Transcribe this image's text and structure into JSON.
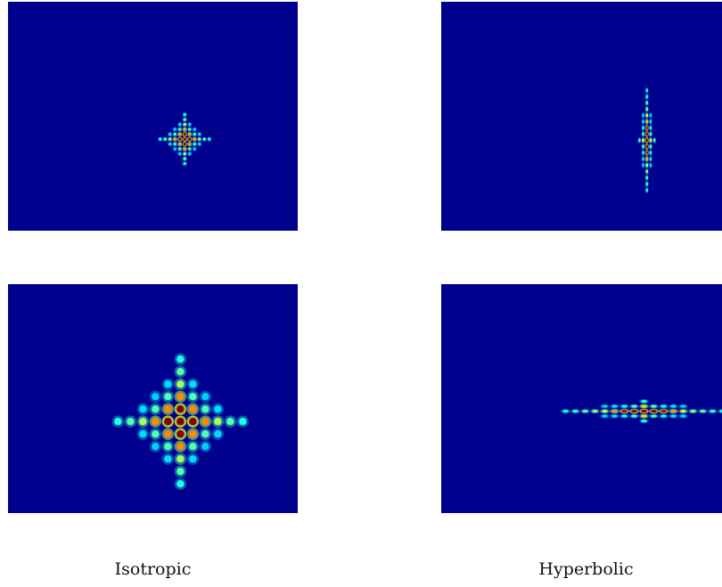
{
  "figure": {
    "colormap": "jet",
    "background_color": "#00008f",
    "captions": [
      "Isotropic",
      "Hyperbolic"
    ]
  },
  "chart_data": [
    {
      "type": "heatmap",
      "column": "Isotropic",
      "row": 1,
      "pattern": "cross-shaped lattice of intensity peaks, compact",
      "grid": "9x9 peaks",
      "peak_spacing": [
        5.5,
        5.5
      ],
      "envelope_width": [
        1.7,
        1.7
      ],
      "center": [
        0.61,
        0.6
      ],
      "core_intensity": 0.95
    },
    {
      "type": "heatmap",
      "column": "Hyperbolic",
      "row": 1,
      "pattern": "vertically elongated lattice of intensity peaks",
      "grid": "3x17 peaks",
      "peak_spacing": [
        4.2,
        7
      ],
      "envelope_width": [
        0.7,
        2.6
      ],
      "center": [
        0.71,
        0.605
      ],
      "core_intensity": 0.9
    },
    {
      "type": "heatmap",
      "column": "Isotropic",
      "row": 2,
      "pattern": "cross-shaped lattice of intensity peaks, expanded",
      "grid": "13x13 peaks",
      "peak_spacing": [
        14,
        14
      ],
      "envelope_width": [
        1.7,
        1.7
      ],
      "center": [
        0.595,
        0.6
      ],
      "core_intensity": 1.0
    },
    {
      "type": "heatmap",
      "column": "Hyperbolic",
      "row": 2,
      "pattern": "horizontally elongated lattice of intensity peaks",
      "grid": "21x3 peaks",
      "peak_spacing": [
        11,
        5.5
      ],
      "envelope_width": [
        2.6,
        0.7
      ],
      "center": [
        0.7,
        0.555
      ],
      "core_intensity": 0.95
    }
  ]
}
